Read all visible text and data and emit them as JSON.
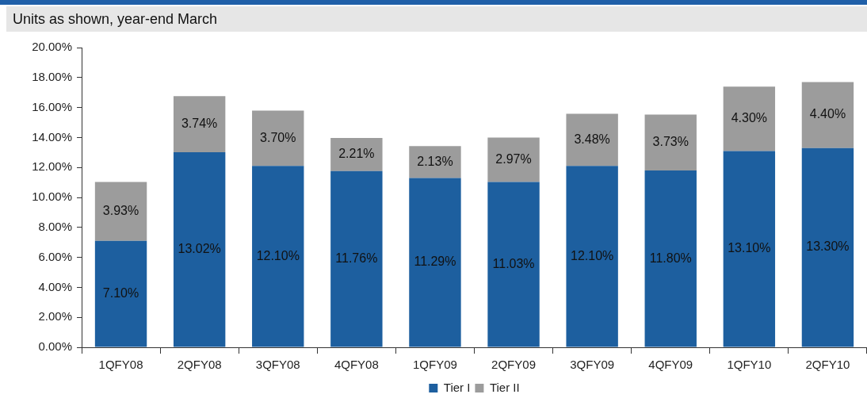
{
  "chart_data": {
    "type": "bar",
    "subtitle": "Units as shown, year-end March",
    "categories": [
      "1QFY08",
      "2QFY08",
      "3QFY08",
      "4QFY08",
      "1QFY09",
      "2QFY09",
      "3QFY09",
      "4QFY09",
      "1QFY10",
      "2QFY10"
    ],
    "series": [
      {
        "name": "Tier I",
        "color": "#1d5f9f",
        "values": [
          7.1,
          13.02,
          12.1,
          11.76,
          11.29,
          11.03,
          12.1,
          11.8,
          13.1,
          13.3
        ],
        "value_labels": [
          "7.10%",
          "13.02%",
          "12.10%",
          "11.76%",
          "11.29%",
          "11.03%",
          "12.10%",
          "11.80%",
          "13.10%",
          "13.30%"
        ]
      },
      {
        "name": "Tier II",
        "color": "#9c9c9c",
        "values": [
          3.93,
          3.74,
          3.7,
          2.21,
          2.13,
          2.97,
          3.48,
          3.73,
          4.3,
          4.4
        ],
        "value_labels": [
          "3.93%",
          "3.74%",
          "3.70%",
          "2.21%",
          "2.13%",
          "2.97%",
          "3.48%",
          "3.73%",
          "4.30%",
          "4.40%"
        ]
      }
    ],
    "stacked": true,
    "ylim": [
      0,
      20
    ],
    "yticks": [
      {
        "value": 0,
        "label": "0.00%"
      },
      {
        "value": 2,
        "label": "2.00%"
      },
      {
        "value": 4,
        "label": "4.00%"
      },
      {
        "value": 6,
        "label": "6.00%"
      },
      {
        "value": 8,
        "label": "8.00%"
      },
      {
        "value": 10,
        "label": "10.00%"
      },
      {
        "value": 12,
        "label": "12.00%"
      },
      {
        "value": 14,
        "label": "14.00%"
      },
      {
        "value": 16,
        "label": "16.00%"
      },
      {
        "value": 18,
        "label": "18.00%"
      },
      {
        "value": 20,
        "label": "20.00%"
      }
    ],
    "legend": "bottom"
  }
}
